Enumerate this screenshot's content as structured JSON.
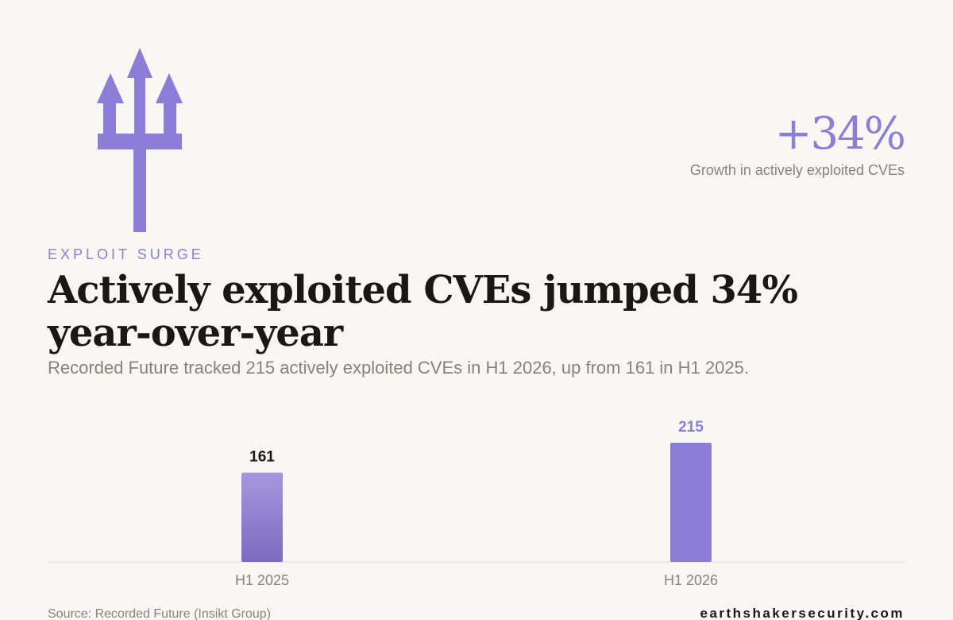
{
  "brand": {
    "logo_icon": "trident-icon",
    "accent_color": "#8b7dd8"
  },
  "stat": {
    "value": "+34%",
    "label": "Growth in actively exploited CVEs"
  },
  "eyebrow": "EXPLOIT SURGE",
  "headline": "Actively exploited CVEs jumped 34% year-over-year",
  "subhead": "Recorded Future tracked 215 actively exploited CVEs in H1 2026, up from 161 in H1 2025.",
  "footer": {
    "source": "Source: Recorded Future (Insikt Group)",
    "site": "earthshakersecurity.com"
  },
  "chart_data": {
    "type": "bar",
    "categories": [
      "H1 2025",
      "H1 2026"
    ],
    "values": [
      161,
      215
    ],
    "data_labels": [
      "161",
      "215"
    ],
    "highlight_index": 1,
    "grid": false,
    "ylim": [
      0,
      230
    ],
    "xlabel": "",
    "ylabel": ""
  }
}
